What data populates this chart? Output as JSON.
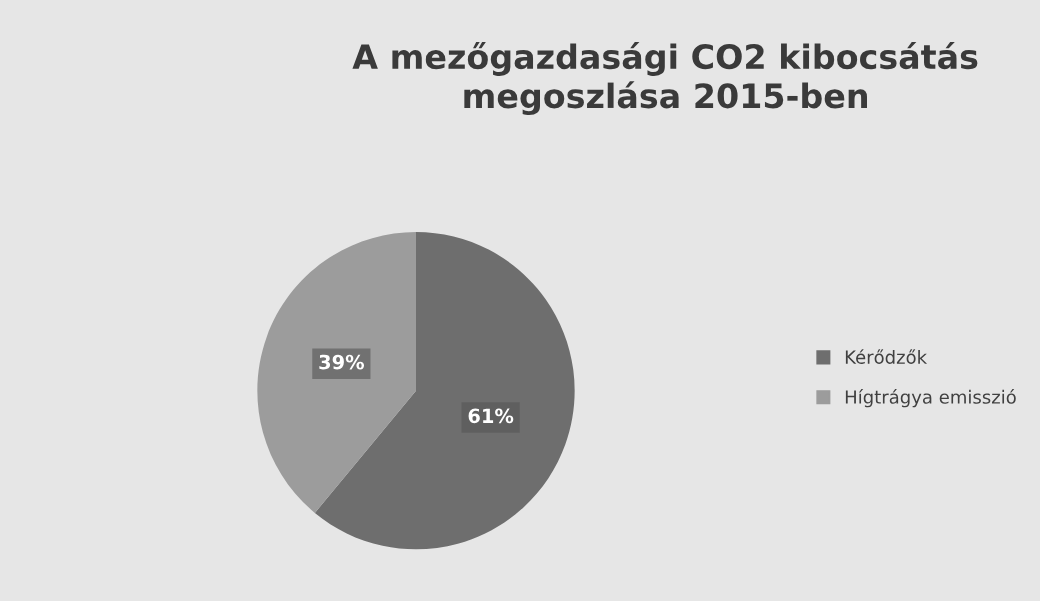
{
  "chart_data": {
    "type": "pie",
    "title": "A mezőgazdasági CO2 kibocsátás\nmegoszlása 2015-ben",
    "categories": [
      "Kérődzők",
      "Hígtrágya emisszió"
    ],
    "values": [
      61,
      39
    ],
    "colors": [
      "#6e6e6e",
      "#9c9c9c"
    ],
    "value_labels": [
      "61%",
      "39%"
    ],
    "legend": "right"
  }
}
